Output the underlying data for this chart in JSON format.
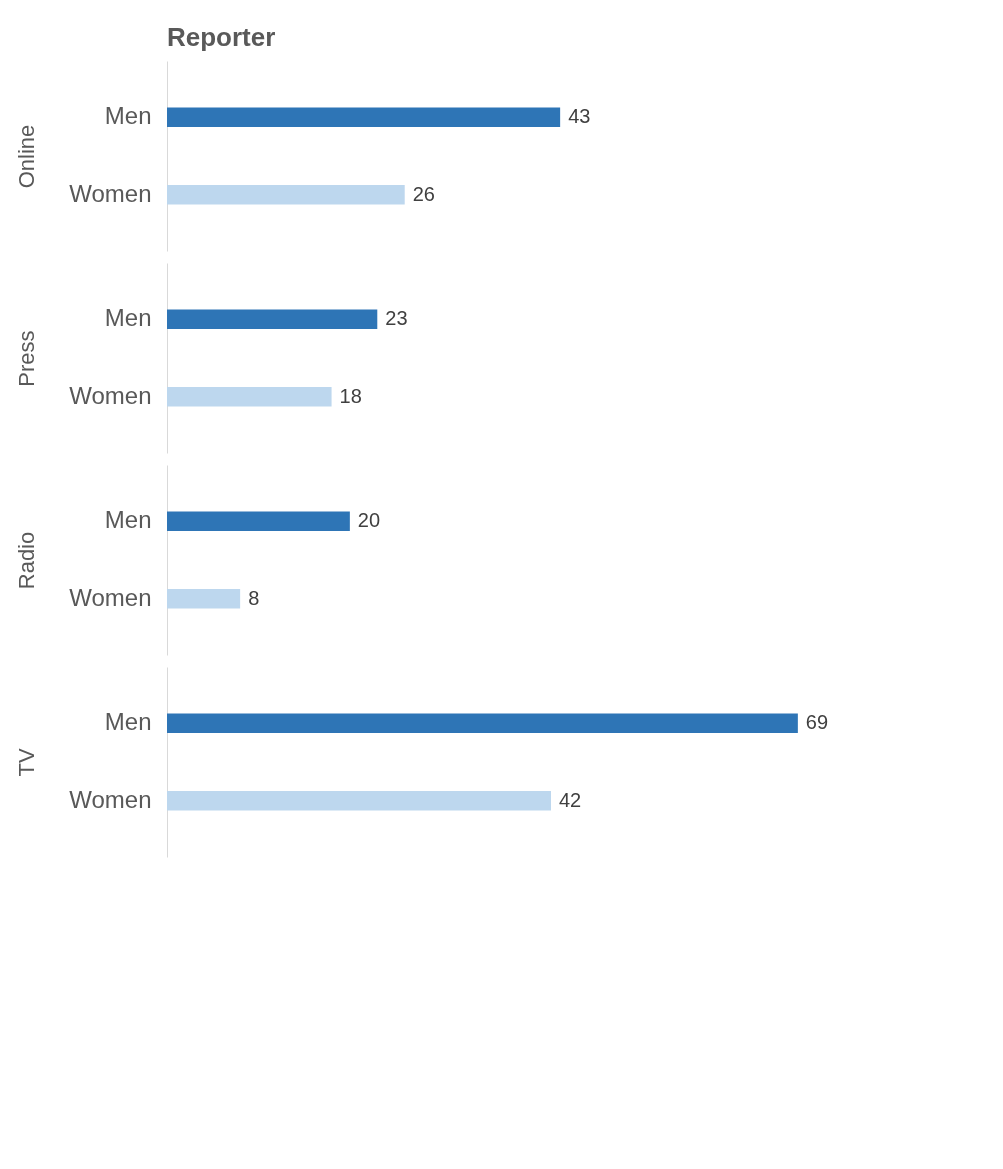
{
  "chart_data": [
    {
      "type": "bar",
      "orientation": "horizontal",
      "title": "Reporter",
      "ylabel": "Online",
      "categories": [
        "Men",
        "Women"
      ],
      "values": [
        43,
        26
      ],
      "colors": [
        "#2e75b6",
        "#bdd7ee"
      ],
      "data_labels": true,
      "tick_labels": "y"
    },
    {
      "type": "bar",
      "orientation": "horizontal",
      "ylabel": "Press",
      "categories": [
        "Men",
        "Women"
      ],
      "values": [
        23,
        18
      ],
      "colors": [
        "#2e75b6",
        "#bdd7ee"
      ],
      "data_labels": true,
      "tick_labels": "y"
    },
    {
      "type": "bar",
      "orientation": "horizontal",
      "ylabel": "Radio",
      "categories": [
        "Men",
        "Women"
      ],
      "values": [
        20,
        8
      ],
      "colors": [
        "#2e75b6",
        "#bdd7ee"
      ],
      "data_labels": true,
      "tick_labels": "y"
    },
    {
      "type": "bar",
      "orientation": "horizontal",
      "ylabel": "TV",
      "categories": [
        "Men",
        "Women"
      ],
      "values": [
        69,
        42
      ],
      "colors": [
        "#2e75b6",
        "#bdd7ee"
      ],
      "data_labels": true,
      "tick_labels": "y"
    }
  ]
}
